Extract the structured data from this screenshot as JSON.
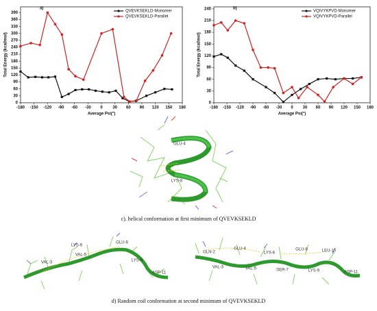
{
  "chart_data": [
    {
      "type": "line",
      "panel_label": "a)",
      "xlabel": "Average Psi(°)",
      "ylabel": "Total Energy (kcal/mol)",
      "xlim": [
        -180,
        180
      ],
      "xticks": [
        -180,
        -150,
        -120,
        -90,
        -60,
        -30,
        0,
        30,
        60,
        90,
        120,
        150,
        180
      ],
      "ylim": [
        0,
        415
      ],
      "yticks": [
        0,
        30,
        60,
        90,
        120,
        150,
        180,
        210,
        240,
        270,
        300,
        330,
        360,
        390
      ],
      "legend": "upper right",
      "series": [
        {
          "name": "QVEVKSEKLD-Monomer",
          "color": "#111111",
          "marker": "square",
          "x": [
            -180,
            -163,
            -147,
            -132,
            -118,
            -103,
            -88,
            -73,
            -58,
            -43,
            -28,
            -13,
            2,
            17,
            32,
            47,
            62,
            77,
            100,
            120,
            140,
            157
          ],
          "values": [
            135,
            110,
            112,
            110,
            110,
            113,
            25,
            38,
            55,
            58,
            58,
            52,
            48,
            45,
            52,
            20,
            5,
            8,
            30,
            45,
            60,
            58
          ]
        },
        {
          "name": "QVEVKSEKLD-Parallel",
          "color": "#d42020",
          "marker": "circle",
          "x": [
            -180,
            -157,
            -137,
            -120,
            -103,
            -88,
            -73,
            -58,
            -40,
            0,
            25,
            50,
            63,
            78,
            97,
            115,
            135,
            155
          ],
          "values": [
            245,
            258,
            250,
            390,
            340,
            295,
            145,
            115,
            100,
            300,
            318,
            25,
            5,
            10,
            95,
            140,
            205,
            300
          ]
        }
      ]
    },
    {
      "type": "line",
      "panel_label": "b)",
      "xlabel": "Average Psi(°)",
      "ylabel": "Total Energy (kcal/mol)",
      "xlim": [
        -180,
        180
      ],
      "xticks": [
        -180,
        -150,
        -120,
        -90,
        -60,
        -30,
        0,
        30,
        60,
        90,
        120,
        150,
        180
      ],
      "ylim": [
        0,
        245
      ],
      "yticks": [
        0,
        30,
        60,
        90,
        120,
        150,
        180,
        210,
        240
      ],
      "legend": "upper right",
      "series": [
        {
          "name": "VQIVYKPVD-Monomer",
          "color": "#111111",
          "marker": "square",
          "x": [
            -180,
            -163,
            -148,
            -130,
            -110,
            -90,
            -60,
            -40,
            -20,
            0,
            20,
            40,
            60,
            80,
            100,
            120,
            140,
            160
          ],
          "values": [
            118,
            124,
            115,
            95,
            82,
            60,
            40,
            25,
            2,
            20,
            35,
            48,
            60,
            62,
            60,
            62,
            62,
            65
          ]
        },
        {
          "name": "VQIVYKPVD-Parallel",
          "color": "#d42020",
          "marker": "circle",
          "x": [
            -180,
            -163,
            -148,
            -130,
            -110,
            -90,
            -72,
            -55,
            -40,
            -20,
            0,
            15,
            35,
            60,
            75,
            95,
            120,
            140,
            160
          ],
          "values": [
            198,
            205,
            185,
            210,
            203,
            135,
            90,
            90,
            88,
            25,
            40,
            12,
            40,
            20,
            3,
            40,
            62,
            48,
            65
          ]
        }
      ]
    }
  ],
  "panel_c": {
    "caption": "c). helical conformation at first minimum of QVEVKSEKLD",
    "labels": [
      "GLU-4",
      "LYS-8"
    ]
  },
  "panel_d": {
    "caption": "d) Random coil conformation at second minimum of QVEVKSEKLD",
    "left_labels": [
      "LYS-6",
      "GLU-8",
      "VAL-3",
      "VAL-5",
      "LYS-9",
      "ASP-11"
    ],
    "right_labels": [
      "GLN-2",
      "GLU-4",
      "LYS-6",
      "GLU-8",
      "LEU-10",
      "VAL-3",
      "VAL-5",
      "SER-7",
      "LYS-9",
      "ASP-11"
    ]
  }
}
